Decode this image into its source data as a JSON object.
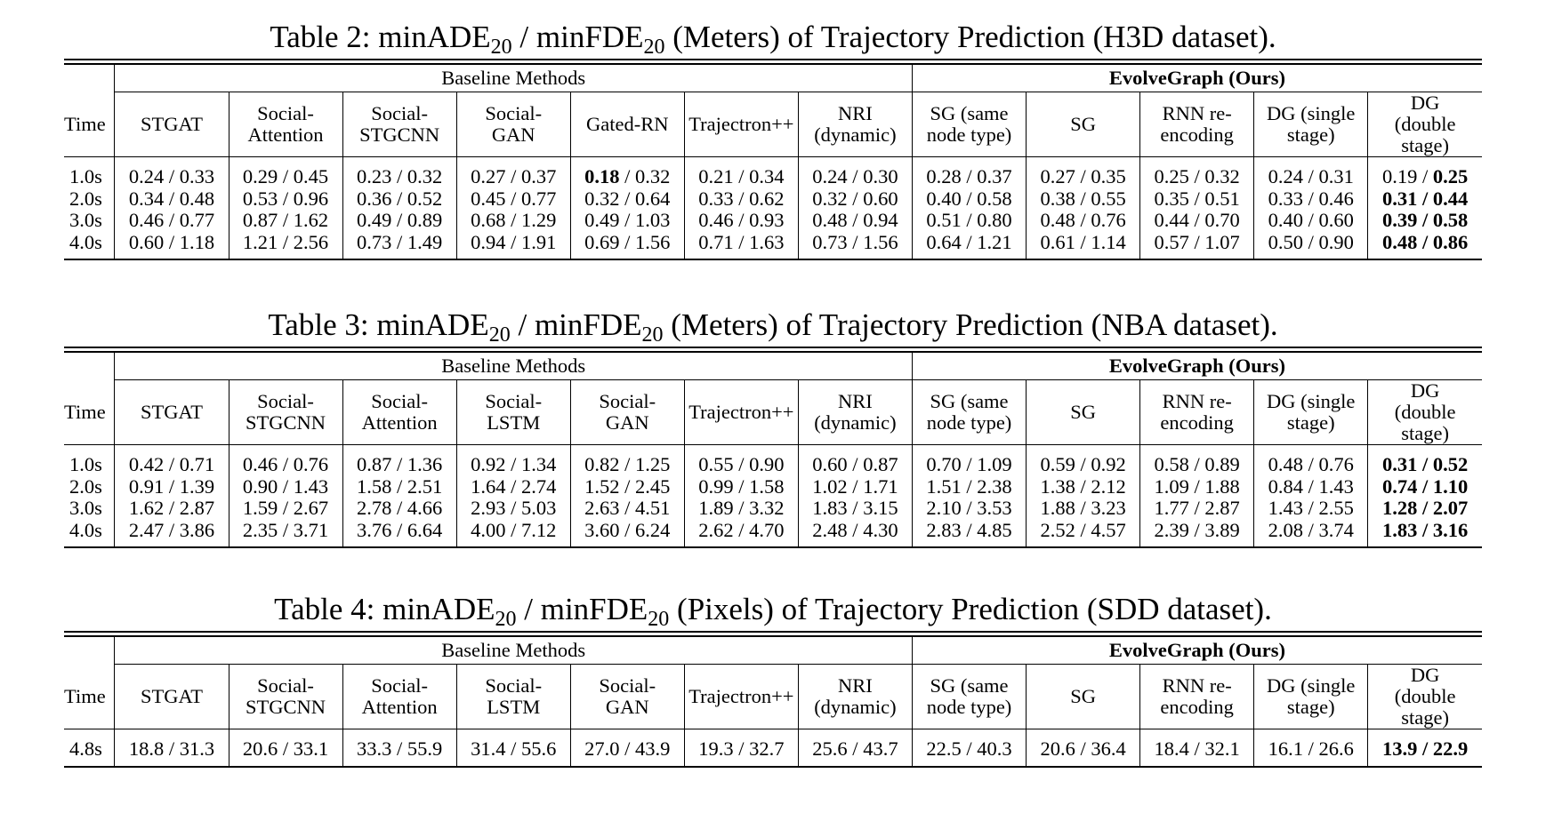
{
  "tables": [
    {
      "title_prefix": "Table 2: minADE",
      "title_sub1": "20",
      "title_mid": " / minFDE",
      "title_sub2": "20",
      "title_suffix": " (Meters) of Trajectory Prediction (H3D dataset).",
      "group_baseline": "Baseline Methods",
      "group_ours": "EvolveGraph (Ours)",
      "time_header": "Time",
      "columns": [
        "STGAT",
        "Social-\nAttention",
        "Social-\nSTGCNN",
        "Social-\nGAN",
        "Gated-RN",
        "Trajectron++",
        "NRI\n(dynamic)",
        "SG (same\nnode type)",
        "SG",
        "RNN re-\nencoding",
        "DG (single\nstage)",
        "DG\n(double\nstage)"
      ],
      "rows": [
        {
          "time": "1.0s",
          "cells": [
            "0.24 / 0.33",
            "0.29 / 0.45",
            "0.23 / 0.32",
            "0.27 / 0.37",
            "0.18 / 0.32",
            "0.21 / 0.34",
            "0.24 / 0.30",
            "0.28 / 0.37",
            "0.27 / 0.35",
            "0.25 / 0.32",
            "0.24 / 0.31",
            "0.19 / 0.25"
          ]
        },
        {
          "time": "2.0s",
          "cells": [
            "0.34 / 0.48",
            "0.53 / 0.96",
            "0.36 / 0.52",
            "0.45 / 0.77",
            "0.32 / 0.64",
            "0.33 / 0.62",
            "0.32 / 0.60",
            "0.40 / 0.58",
            "0.38 / 0.55",
            "0.35 / 0.51",
            "0.33 / 0.46",
            "0.31 / 0.44"
          ]
        },
        {
          "time": "3.0s",
          "cells": [
            "0.46 / 0.77",
            "0.87 / 1.62",
            "0.49 / 0.89",
            "0.68 / 1.29",
            "0.49 / 1.03",
            "0.46 / 0.93",
            "0.48 / 0.94",
            "0.51 / 0.80",
            "0.48 / 0.76",
            "0.44 / 0.70",
            "0.40 / 0.60",
            "0.39 / 0.58"
          ]
        },
        {
          "time": "4.0s",
          "cells": [
            "0.60 / 1.18",
            "1.21 / 2.56",
            "0.73 / 1.49",
            "0.94 / 1.91",
            "0.69 / 1.56",
            "0.71 / 1.63",
            "0.73 / 1.56",
            "0.64 / 1.21",
            "0.61 / 1.14",
            "0.57 / 1.07",
            "0.50 / 0.90",
            "0.48 / 0.86"
          ]
        }
      ],
      "bold": [
        [
          0,
          4,
          "a"
        ],
        [
          0,
          11,
          "b"
        ],
        [
          1,
          11,
          "ab"
        ],
        [
          2,
          11,
          "ab"
        ],
        [
          3,
          11,
          "ab"
        ]
      ]
    },
    {
      "title_prefix": "Table 3: minADE",
      "title_sub1": "20",
      "title_mid": " / minFDE",
      "title_sub2": "20",
      "title_suffix": " (Meters) of Trajectory Prediction (NBA dataset).",
      "group_baseline": "Baseline Methods",
      "group_ours": "EvolveGraph (Ours)",
      "time_header": "Time",
      "columns": [
        "STGAT",
        "Social-\nSTGCNN",
        "Social-\nAttention",
        "Social-\nLSTM",
        "Social-\nGAN",
        "Trajectron++",
        "NRI\n(dynamic)",
        "SG (same\nnode type)",
        "SG",
        "RNN re-\nencoding",
        "DG (single\nstage)",
        "DG\n(double\nstage)"
      ],
      "rows": [
        {
          "time": "1.0s",
          "cells": [
            "0.42 / 0.71",
            "0.46 / 0.76",
            "0.87 / 1.36",
            "0.92 / 1.34",
            "0.82 / 1.25",
            "0.55 / 0.90",
            "0.60 / 0.87",
            "0.70 / 1.09",
            "0.59 / 0.92",
            "0.58 / 0.89",
            "0.48 / 0.76",
            "0.31 / 0.52"
          ]
        },
        {
          "time": "2.0s",
          "cells": [
            "0.91 / 1.39",
            "0.90 / 1.43",
            "1.58 / 2.51",
            "1.64 / 2.74",
            "1.52 / 2.45",
            "0.99 / 1.58",
            "1.02 / 1.71",
            "1.51 / 2.38",
            "1.38 / 2.12",
            "1.09 / 1.88",
            "0.84 / 1.43",
            "0.74 / 1.10"
          ]
        },
        {
          "time": "3.0s",
          "cells": [
            "1.62 / 2.87",
            "1.59 / 2.67",
            "2.78 / 4.66",
            "2.93 / 5.03",
            "2.63 / 4.51",
            "1.89 / 3.32",
            "1.83 / 3.15",
            "2.10 / 3.53",
            "1.88 / 3.23",
            "1.77 / 2.87",
            "1.43 / 2.55",
            "1.28 / 2.07"
          ]
        },
        {
          "time": "4.0s",
          "cells": [
            "2.47 / 3.86",
            "2.35 / 3.71",
            "3.76 / 6.64",
            "4.00 / 7.12",
            "3.60 / 6.24",
            "2.62 / 4.70",
            "2.48 / 4.30",
            "2.83 / 4.85",
            "2.52 / 4.57",
            "2.39 / 3.89",
            "2.08 / 3.74",
            "1.83 / 3.16"
          ]
        }
      ],
      "bold": [
        [
          0,
          11,
          "ab"
        ],
        [
          1,
          11,
          "ab"
        ],
        [
          2,
          11,
          "ab"
        ],
        [
          3,
          11,
          "ab"
        ]
      ]
    },
    {
      "title_prefix": "Table 4: minADE",
      "title_sub1": "20",
      "title_mid": " / minFDE",
      "title_sub2": "20",
      "title_suffix": " (Pixels) of Trajectory Prediction (SDD dataset).",
      "group_baseline": "Baseline Methods",
      "group_ours": "EvolveGraph (Ours)",
      "time_header": "Time",
      "columns": [
        "STGAT",
        "Social-\nSTGCNN",
        "Social-\nAttention",
        "Social-\nLSTM",
        "Social-\nGAN",
        "Trajectron++",
        "NRI\n(dynamic)",
        "SG (same\nnode type)",
        "SG",
        "RNN re-\nencoding",
        "DG (single\nstage)",
        "DG\n(double\nstage)"
      ],
      "rows": [
        {
          "time": "4.8s",
          "cells": [
            "18.8 / 31.3",
            "20.6 / 33.1",
            "33.3 / 55.9",
            "31.4 / 55.6",
            "27.0 / 43.9",
            "19.3 / 32.7",
            "25.6 / 43.7",
            "22.5 / 40.3",
            "20.6 / 36.4",
            "18.4 / 32.1",
            "16.1 / 26.6",
            "13.9 / 22.9"
          ]
        }
      ],
      "bold": [
        [
          0,
          11,
          "ab"
        ]
      ]
    }
  ]
}
